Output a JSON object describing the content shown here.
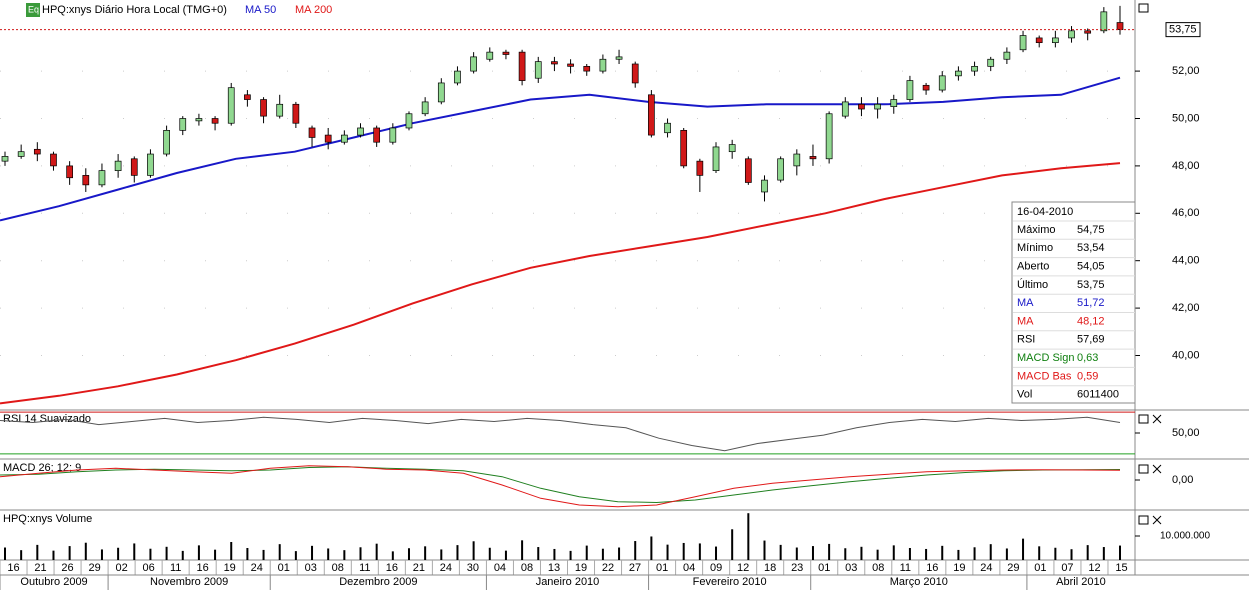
{
  "header": {
    "icon": "Eq",
    "title": "HPQ:xnys Diário Hora Local (TMG+0)",
    "ma50": "MA 50",
    "ma200": "MA 200"
  },
  "chart_data": {
    "type": "candlestick",
    "ohlc": [
      [
        48.2,
        48.6,
        48.0,
        48.4
      ],
      [
        48.4,
        48.9,
        48.3,
        48.6
      ],
      [
        48.7,
        49.0,
        48.2,
        48.5
      ],
      [
        48.5,
        48.6,
        47.8,
        48.0
      ],
      [
        48.0,
        48.2,
        47.2,
        47.5
      ],
      [
        47.6,
        47.9,
        46.9,
        47.2
      ],
      [
        47.2,
        48.1,
        47.1,
        47.8
      ],
      [
        47.8,
        48.5,
        47.5,
        48.2
      ],
      [
        48.3,
        48.4,
        47.3,
        47.6
      ],
      [
        47.6,
        48.7,
        47.5,
        48.5
      ],
      [
        48.5,
        49.7,
        48.4,
        49.5
      ],
      [
        49.5,
        50.1,
        49.3,
        50.0
      ],
      [
        49.9,
        50.2,
        49.7,
        50.0
      ],
      [
        50.0,
        50.1,
        49.5,
        49.8
      ],
      [
        49.8,
        51.5,
        49.7,
        51.3
      ],
      [
        51.0,
        51.2,
        50.5,
        50.8
      ],
      [
        50.8,
        50.9,
        49.8,
        50.1
      ],
      [
        50.1,
        51.0,
        50.0,
        50.6
      ],
      [
        50.6,
        50.7,
        49.6,
        49.8
      ],
      [
        49.6,
        49.7,
        48.8,
        49.2
      ],
      [
        49.3,
        49.6,
        48.7,
        49.0
      ],
      [
        49.0,
        49.5,
        48.9,
        49.3
      ],
      [
        49.3,
        49.8,
        49.2,
        49.6
      ],
      [
        49.6,
        49.7,
        48.8,
        49.0
      ],
      [
        49.0,
        49.8,
        48.9,
        49.6
      ],
      [
        49.6,
        50.3,
        49.5,
        50.2
      ],
      [
        50.2,
        50.9,
        50.1,
        50.7
      ],
      [
        50.7,
        51.7,
        50.6,
        51.5
      ],
      [
        51.5,
        52.2,
        51.4,
        52.0
      ],
      [
        52.0,
        52.8,
        51.9,
        52.6
      ],
      [
        52.5,
        53.0,
        52.4,
        52.8
      ],
      [
        52.8,
        52.9,
        52.5,
        52.7
      ],
      [
        52.8,
        52.9,
        51.4,
        51.6
      ],
      [
        51.7,
        52.6,
        51.5,
        52.4
      ],
      [
        52.4,
        52.6,
        52.0,
        52.3
      ],
      [
        52.3,
        52.5,
        51.9,
        52.2
      ],
      [
        52.2,
        52.3,
        51.8,
        52.0
      ],
      [
        52.0,
        52.7,
        51.9,
        52.5
      ],
      [
        52.5,
        52.9,
        52.3,
        52.6
      ],
      [
        52.3,
        52.4,
        51.3,
        51.5
      ],
      [
        51.0,
        51.2,
        49.2,
        49.3
      ],
      [
        49.4,
        50.0,
        49.2,
        49.8
      ],
      [
        49.5,
        49.6,
        47.9,
        48.0
      ],
      [
        48.2,
        48.3,
        46.9,
        47.6
      ],
      [
        47.8,
        49.0,
        47.7,
        48.8
      ],
      [
        48.6,
        49.1,
        48.3,
        48.9
      ],
      [
        48.3,
        48.4,
        47.2,
        47.3
      ],
      [
        46.9,
        47.6,
        46.5,
        47.4
      ],
      [
        47.4,
        48.4,
        47.3,
        48.3
      ],
      [
        48.0,
        48.7,
        47.6,
        48.5
      ],
      [
        48.4,
        48.9,
        48.0,
        48.3
      ],
      [
        48.3,
        50.3,
        48.1,
        50.2
      ],
      [
        50.1,
        50.9,
        50.0,
        50.7
      ],
      [
        50.6,
        50.9,
        50.1,
        50.4
      ],
      [
        50.4,
        50.9,
        50.0,
        50.6
      ],
      [
        50.5,
        51.0,
        50.2,
        50.8
      ],
      [
        50.8,
        51.8,
        50.7,
        51.6
      ],
      [
        51.4,
        51.5,
        51.0,
        51.2
      ],
      [
        51.2,
        52.0,
        51.1,
        51.8
      ],
      [
        51.8,
        52.2,
        51.6,
        52.0
      ],
      [
        52.0,
        52.4,
        51.8,
        52.2
      ],
      [
        52.2,
        52.6,
        52.0,
        52.5
      ],
      [
        52.5,
        53.0,
        52.3,
        52.8
      ],
      [
        52.9,
        53.7,
        52.8,
        53.5
      ],
      [
        53.4,
        53.5,
        53.0,
        53.2
      ],
      [
        53.2,
        53.7,
        53.0,
        53.4
      ],
      [
        53.4,
        53.9,
        53.2,
        53.7
      ],
      [
        53.7,
        53.8,
        53.3,
        53.6
      ],
      [
        53.7,
        54.7,
        53.6,
        54.5
      ],
      [
        54.05,
        54.75,
        53.54,
        53.75
      ]
    ],
    "up_color": "#90d890",
    "down_color": "#d01818",
    "ylim": [
      37.7,
      55.0
    ],
    "yticks": [
      {
        "value": 40,
        "label": "40,00"
      },
      {
        "value": 42,
        "label": "42,00"
      },
      {
        "value": 44,
        "label": "44,00"
      },
      {
        "value": 46,
        "label": "46,00"
      },
      {
        "value": 48,
        "label": "48,00"
      },
      {
        "value": 50,
        "label": "50,00"
      },
      {
        "value": 52,
        "label": "52,00"
      }
    ],
    "last": {
      "value": 53.75,
      "label": "53,75"
    },
    "overlays": [
      {
        "color": "#1818c8",
        "values": [
          45.7,
          46.3,
          47.0,
          47.7,
          48.3,
          48.6,
          49.2,
          49.8,
          50.3,
          50.8,
          51.0,
          50.7,
          50.5,
          50.6,
          50.6,
          50.6,
          50.7,
          50.9,
          51.0,
          51.72
        ]
      },
      {
        "color": "#e01818",
        "values": [
          37.98,
          38.3,
          38.7,
          39.2,
          39.8,
          40.5,
          41.3,
          42.2,
          43.0,
          43.7,
          44.2,
          44.6,
          45.0,
          45.5,
          46.0,
          46.6,
          47.1,
          47.6,
          47.9,
          48.12
        ]
      }
    ],
    "months": [
      {
        "name": "Outubro 2009",
        "days": [
          "16",
          "21",
          "26",
          "29"
        ]
      },
      {
        "name": "Novembro 2009",
        "days": [
          "02",
          "06",
          "11",
          "16",
          "19",
          "24"
        ]
      },
      {
        "name": "Dezembro 2009",
        "days": [
          "01",
          "03",
          "08",
          "11",
          "16",
          "21",
          "24",
          "30"
        ]
      },
      {
        "name": "Janeiro 2010",
        "days": [
          "04",
          "08",
          "13",
          "19",
          "22",
          "27"
        ]
      },
      {
        "name": "Fevereiro 2010",
        "days": [
          "01",
          "04",
          "09",
          "12",
          "18",
          "23"
        ]
      },
      {
        "name": "Março 2010",
        "days": [
          "01",
          "03",
          "08",
          "11",
          "16",
          "19",
          "24",
          "29"
        ]
      },
      {
        "name": "Abril 2010",
        "days": [
          "01",
          "07",
          "12",
          "15"
        ]
      }
    ]
  },
  "info": {
    "date": "16-04-2010",
    "rows": [
      {
        "label": "Máximo",
        "value": "54,75",
        "color": "#000"
      },
      {
        "label": "Mínimo",
        "value": "53,54",
        "color": "#000"
      },
      {
        "label": "Aberto",
        "value": "54,05",
        "color": "#000"
      },
      {
        "label": "Último",
        "value": "53,75",
        "color": "#000"
      },
      {
        "label": "MA",
        "value": "51,72",
        "color": "#1818c8"
      },
      {
        "label": "MA",
        "value": "48,12",
        "color": "#e01818"
      },
      {
        "label": "RSI",
        "value": "57,69",
        "color": "#000"
      },
      {
        "label": "MACD Sign",
        "value": "0,63",
        "color": "#108010"
      },
      {
        "label": "MACD Bas",
        "value": "0,59",
        "color": "#e01818"
      },
      {
        "label": "Vol",
        "value": "6011400",
        "color": "#000"
      }
    ]
  },
  "rsi": {
    "title": "RSI 14 Suavizado",
    "ylim": [
      28,
      72
    ],
    "yticks": [
      {
        "value": 50,
        "label": "50,00"
      }
    ],
    "levels": [
      70,
      30
    ],
    "color": "#555",
    "values": [
      62,
      60,
      63,
      58,
      61,
      64,
      60,
      62,
      65,
      63,
      60,
      64,
      62,
      59,
      63,
      61,
      64,
      62,
      58,
      55,
      45,
      38,
      33,
      40,
      44,
      48,
      55,
      60,
      63,
      61,
      64,
      62,
      63,
      65,
      60
    ]
  },
  "macd": {
    "title": "MACD 26; 12; 9",
    "ylim": [
      -1.8,
      1.2
    ],
    "yticks": [
      {
        "value": 0,
        "label": "0,00"
      }
    ],
    "series": [
      {
        "color": "#208020",
        "values": [
          0.3,
          0.35,
          0.5,
          0.6,
          0.65,
          0.6,
          0.55,
          0.6,
          0.75,
          0.8,
          0.7,
          0.65,
          0.55,
          0.2,
          -0.5,
          -1.0,
          -1.3,
          -1.35,
          -1.2,
          -0.9,
          -0.6,
          -0.35,
          -0.1,
          0.1,
          0.3,
          0.45,
          0.55,
          0.6,
          0.62,
          0.63
        ]
      },
      {
        "color": "#e01818",
        "values": [
          0.2,
          0.4,
          0.6,
          0.7,
          0.6,
          0.5,
          0.4,
          0.7,
          0.85,
          0.8,
          0.65,
          0.6,
          0.4,
          -0.3,
          -1.1,
          -1.5,
          -1.6,
          -1.5,
          -1.0,
          -0.5,
          -0.2,
          0.0,
          0.2,
          0.35,
          0.5,
          0.55,
          0.6,
          0.62,
          0.6,
          0.59
        ]
      }
    ]
  },
  "volume": {
    "title": "HPQ:xnys Volume",
    "ylim": [
      0,
      20000000
    ],
    "yticks": [
      {
        "value": 10000000,
        "label": "10.000.000"
      }
    ],
    "values": [
      5200000,
      4100000,
      6300000,
      3900000,
      5800000,
      7200000,
      4400000,
      5100000,
      6900000,
      4700000,
      5500000,
      3800000,
      6100000,
      4300000,
      7500000,
      5000000,
      4200000,
      6600000,
      3700000,
      5900000,
      4800000,
      4100000,
      5300000,
      6800000,
      3600000,
      4900000,
      5700000,
      4400000,
      6200000,
      7800000,
      5100000,
      3900000,
      8200000,
      5400000,
      4600000,
      3800000,
      6000000,
      4700000,
      5200000,
      7900000,
      9800000,
      6400000,
      7100000,
      6900000,
      5600000,
      12800000,
      19500000,
      8100000,
      6300000,
      5200000,
      5800000,
      6700000,
      4900000,
      5500000,
      4300000,
      6100000,
      5000000,
      4600000,
      5900000,
      4200000,
      5300000,
      6600000,
      4800000,
      8900000,
      5700000,
      5100000,
      4500000,
      6200000,
      5400000,
      6011400
    ]
  }
}
